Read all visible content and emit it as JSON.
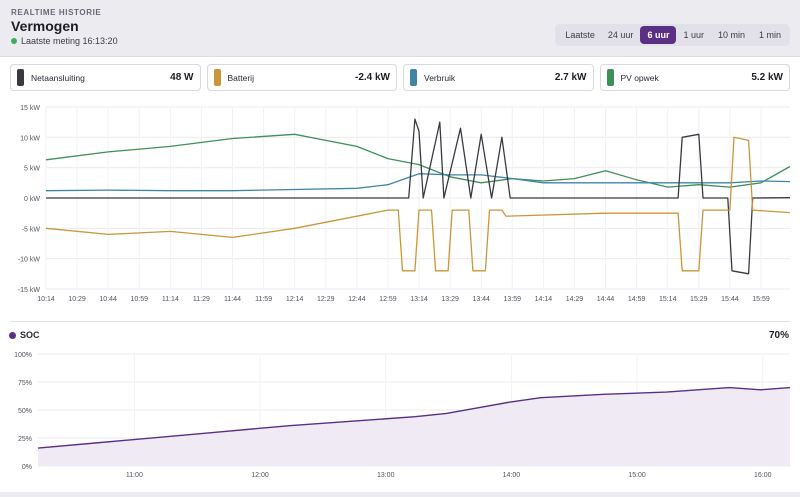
{
  "header": {
    "eyebrow": "REALTIME HISTORIE",
    "title": "Vermogen",
    "status": "Laatste meting 16:13:20"
  },
  "range": {
    "label": "Laatste",
    "options": [
      "24 uur",
      "6 uur",
      "1 uur",
      "10 min",
      "1 min"
    ],
    "selected": "6 uur"
  },
  "cards": [
    {
      "label": "Netaansluiting",
      "value": "48 W",
      "color": "#3a3942"
    },
    {
      "label": "Batterij",
      "value": "-2.4 kW",
      "color": "#c9973a"
    },
    {
      "label": "Verbruik",
      "value": "2.7 kW",
      "color": "#3f86a6"
    },
    {
      "label": "PV opwek",
      "value": "5.2 kW",
      "color": "#3f8f5a"
    }
  ],
  "soc": {
    "label": "SOC",
    "value": "70%",
    "color": "#5b2f84"
  },
  "chart_data": [
    {
      "type": "line",
      "ylabel_unit": "kW",
      "ylim": [
        -15,
        15
      ],
      "yticks": [
        "15 kW",
        "10 kW",
        "5 kW",
        "0 kW",
        "-5 kW",
        "-10 kW",
        "-15 kW"
      ],
      "ytick_values": [
        15,
        10,
        5,
        0,
        -5,
        -10,
        -15
      ],
      "xlim": [
        "10:14",
        "16:13"
      ],
      "xticks": [
        "10:14",
        "10:29",
        "10:44",
        "10:59",
        "11:14",
        "11:29",
        "11:44",
        "11:59",
        "12:14",
        "12:29",
        "12:44",
        "12:59",
        "13:14",
        "13:29",
        "13:44",
        "13:59",
        "14:14",
        "14:29",
        "14:44",
        "14:59",
        "15:14",
        "15:29",
        "15:44",
        "15:59"
      ],
      "grid": true,
      "series": [
        {
          "name": "PV opwek",
          "color": "#3f8f5a",
          "x": [
            "10:14",
            "10:44",
            "11:14",
            "11:44",
            "12:14",
            "12:29",
            "12:44",
            "12:59",
            "13:14",
            "13:29",
            "13:44",
            "13:59",
            "14:14",
            "14:29",
            "14:44",
            "14:59",
            "15:14",
            "15:29",
            "15:44",
            "15:59",
            "16:13"
          ],
          "y": [
            6.3,
            7.6,
            8.5,
            9.8,
            10.5,
            9.5,
            8.5,
            6.5,
            5.5,
            3.5,
            2.5,
            3.2,
            2.8,
            3.2,
            4.5,
            3.0,
            1.8,
            2.2,
            1.8,
            2.5,
            5.2
          ]
        },
        {
          "name": "Verbruik",
          "color": "#3f86a6",
          "x": [
            "10:14",
            "10:44",
            "11:14",
            "11:44",
            "12:14",
            "12:44",
            "12:59",
            "13:14",
            "13:29",
            "13:44",
            "13:59",
            "14:14",
            "14:44",
            "15:14",
            "15:44",
            "15:59",
            "16:13"
          ],
          "y": [
            1.2,
            1.3,
            1.2,
            1.2,
            1.4,
            1.6,
            2.2,
            4.0,
            3.8,
            3.8,
            3.2,
            2.5,
            2.5,
            2.5,
            2.5,
            2.8,
            2.7
          ]
        },
        {
          "name": "Netaansluiting",
          "color": "#3a3942",
          "x": [
            "10:14",
            "12:59",
            "13:09",
            "13:12",
            "13:14",
            "13:16",
            "13:24",
            "13:26",
            "13:34",
            "13:39",
            "13:44",
            "13:49",
            "13:54",
            "13:58",
            "14:00",
            "15:19",
            "15:21",
            "15:29",
            "15:31",
            "15:43",
            "15:45",
            "15:53",
            "15:55",
            "16:13"
          ],
          "y": [
            0,
            0,
            0,
            13,
            11,
            0,
            12.5,
            0,
            11.5,
            0,
            10.5,
            0,
            10,
            0,
            0,
            0,
            10,
            10.5,
            0,
            0,
            -12,
            -12.5,
            0,
            0.05
          ]
        },
        {
          "name": "Batterij",
          "color": "#c9973a",
          "x": [
            "10:14",
            "10:44",
            "11:14",
            "11:44",
            "12:14",
            "12:44",
            "12:59",
            "13:04",
            "13:06",
            "13:12",
            "13:14",
            "13:20",
            "13:22",
            "13:28",
            "13:30",
            "13:38",
            "13:40",
            "13:46",
            "13:48",
            "13:54",
            "13:56",
            "14:44",
            "15:19",
            "15:21",
            "15:29",
            "15:31",
            "15:44",
            "15:46",
            "15:53",
            "15:55",
            "16:13"
          ],
          "y": [
            -5,
            -6,
            -5.5,
            -6.5,
            -5,
            -3,
            -2,
            -2,
            -12,
            -12,
            -2,
            -2,
            -12,
            -12,
            -2,
            -2,
            -12,
            -12,
            -2,
            -2,
            -3,
            -2.5,
            -2.5,
            -12,
            -12,
            -2,
            -2,
            10,
            9.5,
            -2,
            -2.4
          ]
        }
      ]
    },
    {
      "type": "area",
      "ylim": [
        0,
        100
      ],
      "yticks": [
        "100%",
        "75%",
        "50%",
        "25%",
        "0%"
      ],
      "ytick_values": [
        100,
        75,
        50,
        25,
        0
      ],
      "xlim": [
        "10:14",
        "16:13"
      ],
      "xticks": [
        "11:00",
        "12:00",
        "13:00",
        "14:00",
        "15:00",
        "16:00"
      ],
      "grid": true,
      "series": [
        {
          "name": "SOC",
          "color": "#5b2f84",
          "x": [
            "10:14",
            "10:44",
            "11:14",
            "11:44",
            "12:14",
            "12:44",
            "13:14",
            "13:29",
            "13:44",
            "13:59",
            "14:14",
            "14:44",
            "15:14",
            "15:29",
            "15:44",
            "15:59",
            "16:13"
          ],
          "y": [
            16,
            21,
            26,
            31,
            36,
            40,
            44,
            47,
            52,
            57,
            61,
            64,
            66,
            68,
            70,
            68,
            70
          ]
        }
      ]
    }
  ]
}
